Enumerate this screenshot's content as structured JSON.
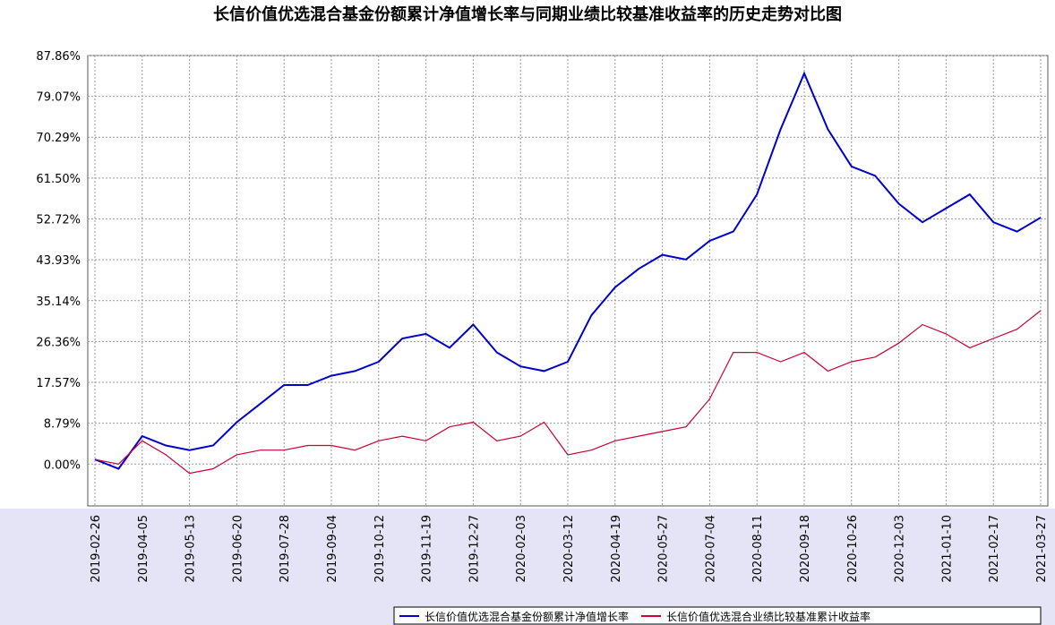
{
  "chart_data": {
    "type": "line",
    "title": "长信价值优选混合基金份额累计净值增长率与同期业绩比较基准收益率的历史走势对比图",
    "categories": [
      "2019-02-26",
      null,
      "2019-04-05",
      null,
      "2019-05-13",
      null,
      "2019-06-20",
      null,
      "2019-07-28",
      null,
      "2019-09-04",
      null,
      "2019-10-12",
      null,
      "2019-11-19",
      null,
      "2019-12-27",
      null,
      "2020-02-03",
      null,
      "2020-03-12",
      null,
      "2020-04-19",
      null,
      "2020-05-27",
      null,
      "2020-07-04",
      null,
      "2020-08-11",
      null,
      "2020-09-18",
      null,
      "2020-10-26",
      null,
      "2020-12-03",
      null,
      "2021-01-10",
      null,
      "2021-02-17",
      null,
      "2021-03-27"
    ],
    "series": [
      {
        "name": "长信价值优选混合基金份额累计净值增长率",
        "color": "#0000cc",
        "values": [
          1,
          -1,
          6,
          4,
          3,
          4,
          9,
          13,
          17,
          17,
          19,
          20,
          22,
          27,
          28,
          25,
          30,
          24,
          21,
          20,
          22,
          32,
          38,
          42,
          45,
          44,
          48,
          50,
          58,
          72,
          84,
          72,
          64,
          62,
          56,
          52,
          55,
          58,
          52,
          50,
          53
        ]
      },
      {
        "name": "长信价值优选混合业绩比较基准累计收益率",
        "color": "#cc0033",
        "values": [
          1,
          0,
          5,
          2,
          -2,
          -1,
          2,
          3,
          3,
          4,
          4,
          3,
          5,
          6,
          5,
          8,
          9,
          5,
          6,
          9,
          2,
          3,
          5,
          6,
          7,
          8,
          14,
          24,
          24,
          22,
          24,
          20,
          22,
          23,
          26,
          30,
          28,
          25,
          27,
          29,
          33
        ]
      }
    ],
    "ylim": [
      -9,
      87.86
    ],
    "yticks": [
      {
        "value": 0,
        "label": "0.00%"
      },
      {
        "value": 8.79,
        "label": "8.79%"
      },
      {
        "value": 17.57,
        "label": "17.57%"
      },
      {
        "value": 26.36,
        "label": "26.36%"
      },
      {
        "value": 35.14,
        "label": "35.14%"
      },
      {
        "value": 43.93,
        "label": "43.93%"
      },
      {
        "value": 52.72,
        "label": "52.72%"
      },
      {
        "value": 61.5,
        "label": "61.50%"
      },
      {
        "value": 70.29,
        "label": "70.29%"
      },
      {
        "value": 79.07,
        "label": "79.07%"
      },
      {
        "value": 87.86,
        "label": "87.86%"
      }
    ],
    "grid": true
  }
}
